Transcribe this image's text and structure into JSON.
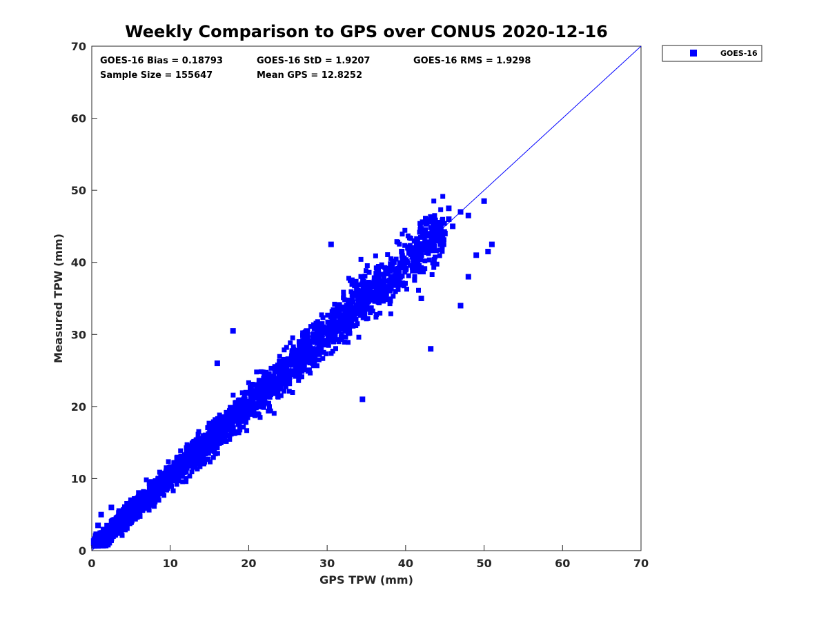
{
  "chart_data": {
    "type": "scatter",
    "title": "Weekly Comparison to GPS over CONUS 2020-12-16",
    "xlabel": "GPS TPW (mm)",
    "ylabel": "Measured TPW (mm)",
    "xlim": [
      0,
      70
    ],
    "ylim": [
      0,
      70
    ],
    "xticks": [
      0,
      10,
      20,
      30,
      40,
      50,
      60,
      70
    ],
    "yticks": [
      0,
      10,
      20,
      30,
      40,
      50,
      60,
      70
    ],
    "grid": false,
    "legend_position": "top-right outside",
    "stats": {
      "bias": "GOES-16 Bias = 0.18793",
      "std": "GOES-16 StD = 1.9207",
      "rms": "GOES-16 RMS = 1.9298",
      "sample_size": "Sample Size = 155647",
      "mean_gps": "Mean GPS = 12.8252"
    },
    "reference_line": {
      "name": "one-to-one line",
      "x": [
        0,
        70
      ],
      "y": [
        0,
        70
      ],
      "color": "#0000ff"
    },
    "series": [
      {
        "name": "GOES-16",
        "color": "#0000ff",
        "marker": "square",
        "sample_size": 155647,
        "description": "dense cloud along one-to-one line from 0 to ~50 mm",
        "points_x": [
          0.3,
          0.5,
          0.8,
          1.0,
          1.2,
          1.5,
          2.0,
          2.5,
          3.0,
          3.5,
          4.0,
          4.5,
          5.0,
          5.5,
          6.0,
          6.5,
          7.0,
          7.5,
          8.0,
          8.5,
          9.0,
          9.5,
          10.0,
          10.5,
          11.0,
          11.5,
          12.0,
          12.5,
          13.0,
          13.5,
          14.0,
          14.5,
          15.0,
          15.5,
          16.0,
          16.5,
          17.0,
          17.5,
          18.0,
          18.5,
          19.0,
          19.5,
          20.0,
          20.5,
          21.0,
          21.5,
          22.0,
          22.5,
          23.0,
          23.5,
          24.0,
          24.5,
          25.0,
          25.5,
          26.0,
          26.5,
          27.0,
          27.5,
          28.0,
          28.5,
          29.0,
          29.5,
          30.0,
          30.5,
          31.0,
          31.5,
          32.0,
          32.5,
          33.0,
          33.5,
          34.0,
          34.5,
          35.0,
          35.5,
          36.0,
          36.5,
          37.0,
          37.5,
          38.0,
          38.5,
          39.0,
          39.5,
          40.0,
          40.5,
          41.0,
          41.5,
          42.0,
          42.5,
          43.0,
          43.5,
          44.0,
          44.5,
          45.0,
          45.5,
          46.0,
          47.0,
          48.0,
          49.0,
          50.0,
          51.0,
          1.0,
          2.0,
          3.0,
          4.0,
          5.0,
          6.0,
          7.0,
          8.0,
          9.0,
          10.0,
          11.0,
          12.0,
          13.0,
          14.0,
          15.0,
          16.0,
          17.0,
          18.0,
          19.0,
          20.0,
          21.0,
          22.0,
          23.0,
          24.0,
          25.0,
          26.0,
          27.0,
          28.0,
          29.0,
          30.0,
          31.0,
          32.0,
          33.0,
          34.0,
          35.0,
          36.0,
          37.0,
          38.0,
          39.0,
          40.0,
          41.0,
          42.0,
          43.0,
          44.0,
          45.0,
          34.5,
          18.0,
          16.0,
          30.5,
          43.2,
          42.0,
          48.0,
          50.5,
          47.0,
          45.5
        ],
        "points_y": [
          1.0,
          2.0,
          3.5,
          1.5,
          5.0,
          2.5,
          3.0,
          6.0,
          4.0,
          5.5,
          3.5,
          6.5,
          7.0,
          5.0,
          8.0,
          6.0,
          7.5,
          9.5,
          7.0,
          10.0,
          8.5,
          11.0,
          9.0,
          12.0,
          10.5,
          13.0,
          11.0,
          14.5,
          12.0,
          15.0,
          13.5,
          16.0,
          15.0,
          17.0,
          15.5,
          18.5,
          16.0,
          19.0,
          18.0,
          20.5,
          18.0,
          21.0,
          19.5,
          22.0,
          20.0,
          23.5,
          21.0,
          24.0,
          22.5,
          25.0,
          23.0,
          26.5,
          24.0,
          27.0,
          25.5,
          28.0,
          26.0,
          29.5,
          27.0,
          30.0,
          28.5,
          31.0,
          29.0,
          32.5,
          30.0,
          33.0,
          31.5,
          34.0,
          32.0,
          35.5,
          33.0,
          36.0,
          34.5,
          37.0,
          35.0,
          38.5,
          36.0,
          39.0,
          37.5,
          40.0,
          38.0,
          41.5,
          39.0,
          42.0,
          40.5,
          43.0,
          41.0,
          44.5,
          42.0,
          45.0,
          43.5,
          44.0,
          44.0,
          46.0,
          45.0,
          47.0,
          46.5,
          41.0,
          48.5,
          42.5,
          0.8,
          1.2,
          2.2,
          3.0,
          4.0,
          5.0,
          6.0,
          7.0,
          8.0,
          9.0,
          10.0,
          11.0,
          12.0,
          13.0,
          14.0,
          15.0,
          16.0,
          17.0,
          18.0,
          19.0,
          20.0,
          21.0,
          22.0,
          23.0,
          24.0,
          25.0,
          26.0,
          27.0,
          28.0,
          29.0,
          30.0,
          31.0,
          32.0,
          33.0,
          34.0,
          35.0,
          36.0,
          37.0,
          38.0,
          39.0,
          40.0,
          41.0,
          42.0,
          43.0,
          44.0,
          21.0,
          30.5,
          26.0,
          42.5,
          28.0,
          35.0,
          38.0,
          41.5,
          34.0,
          47.5
        ]
      }
    ]
  }
}
